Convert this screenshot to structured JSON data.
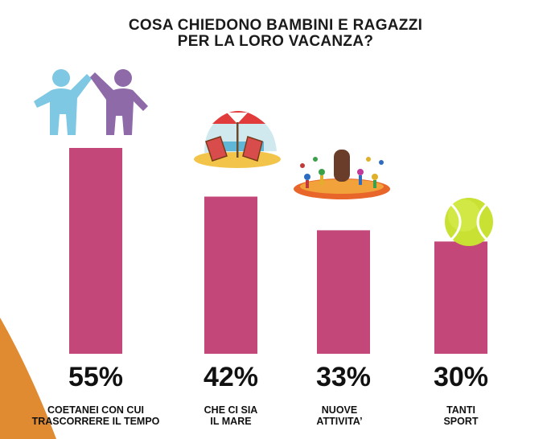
{
  "title_lines": [
    "COSA CHIEDONO BAMBINI E RAGAZZI",
    "PER LA LORO VACANZA?"
  ],
  "colors": {
    "bar": "#c4477a",
    "accent": "#e08a32"
  },
  "chart_data": {
    "type": "bar",
    "title": "COSA CHIEDONO BAMBINI E RAGAZZI PER LA LORO VACANZA?",
    "categories": [
      "COETANEI CON CUI TRASCORRERE IL TEMPO",
      "CHE CI SIA IL MARE",
      "NUOVE ATTIVITA'",
      "TANTI SPORT"
    ],
    "category_lines": [
      [
        "COETANEI CON CUI",
        "TRASCORRERE IL TEMPO"
      ],
      [
        "CHE CI SIA",
        "IL MARE"
      ],
      [
        "NUOVE",
        "ATTIVITA’"
      ],
      [
        "TANTI",
        "SPORT"
      ]
    ],
    "values": [
      55,
      42,
      33,
      30
    ],
    "value_labels": [
      "55%",
      "42%",
      "33%",
      "30%"
    ],
    "unit": "%",
    "ylim": [
      0,
      55
    ],
    "xlabel": "",
    "ylabel": "",
    "grid": false,
    "legend": "none"
  },
  "icons": [
    "people-high-five-icon",
    "beach-umbrella-icon",
    "circus-activity-icon",
    "tennis-ball-icon"
  ]
}
